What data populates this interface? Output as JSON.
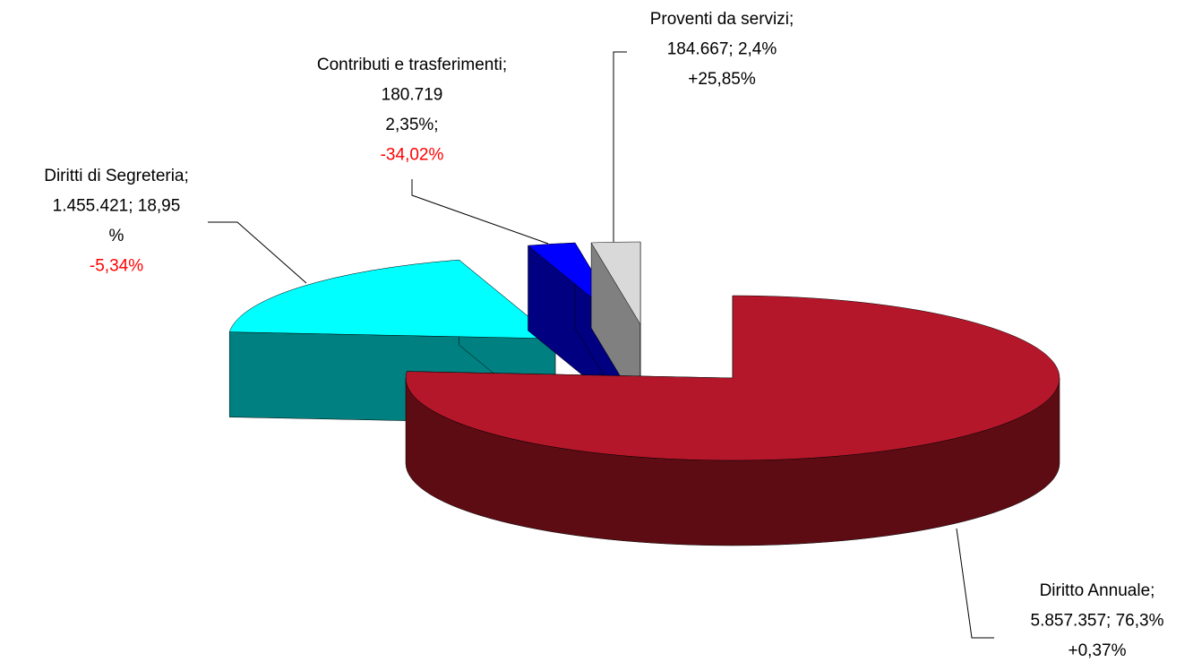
{
  "chart_data": {
    "type": "pie3d",
    "categories": [
      "Diritto Annuale;",
      "Diritti di Segreteria;",
      "Contributi e trasferimenti;",
      "Proventi da servizi;"
    ],
    "values": [
      5857357,
      1455421,
      180719,
      184667
    ],
    "value_labels": [
      [
        "5.857.357; 76,3%"
      ],
      [
        "1.455.421; 18,95",
        "%"
      ],
      [
        "180.719",
        "2,35%;"
      ],
      [
        "184.667; 2,4%"
      ]
    ],
    "changes": [
      "+0,37%",
      "-5,34%",
      "-34,02%",
      "+25,85%"
    ],
    "change_colors": [
      "#000000",
      "#ff0000",
      "#ff0000",
      "#000000"
    ],
    "colors": [
      "#b5172a",
      "#00ffff",
      "#0000ff",
      "#d9d9d9"
    ],
    "side_colors": [
      "#5e0c14",
      "#008080",
      "#000080",
      "#808080"
    ]
  }
}
